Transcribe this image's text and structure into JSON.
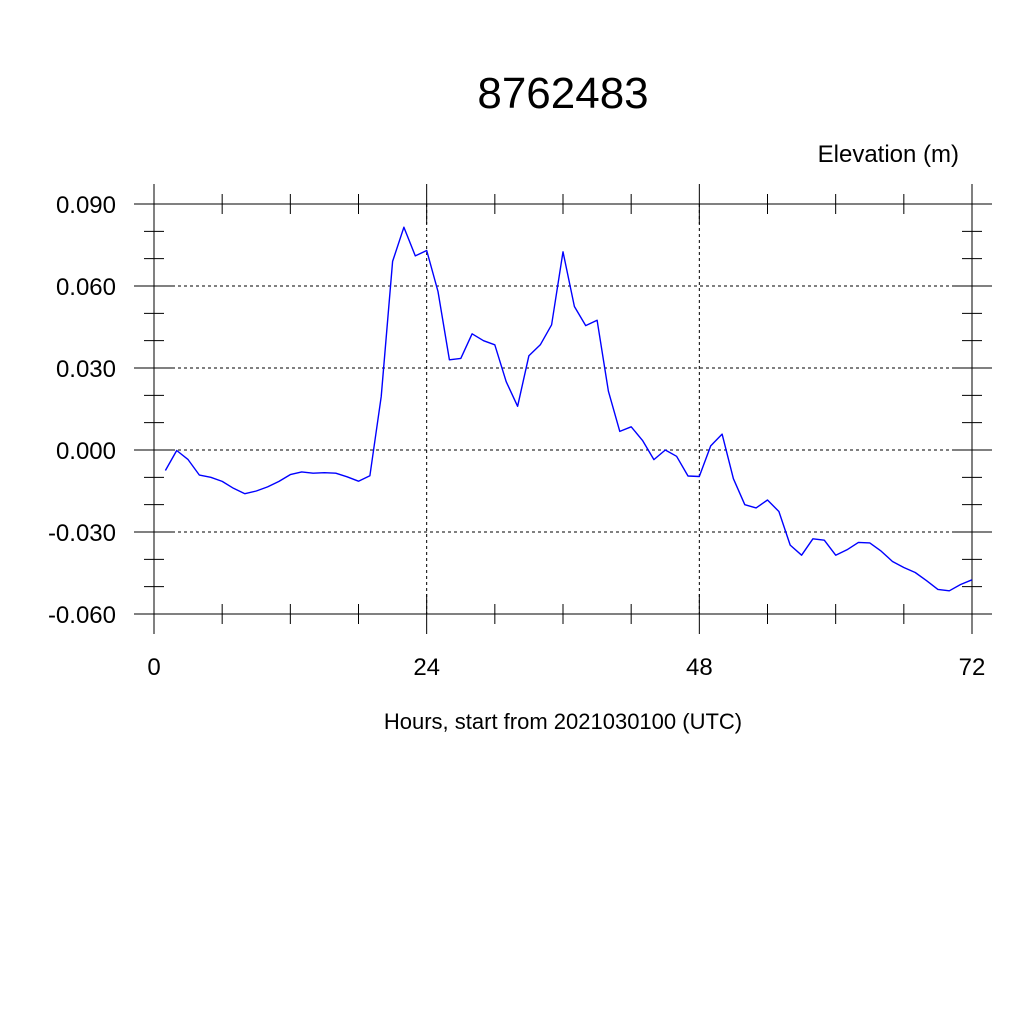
{
  "chart_data": {
    "type": "line",
    "title": "8762483",
    "unit_label": "Elevation (m)",
    "xlabel": "Hours, start from 2021030100 (UTC)",
    "ylabel": "",
    "xlim": [
      0,
      72
    ],
    "ylim": [
      -0.06,
      0.09
    ],
    "xticks": [
      0,
      24,
      48,
      72
    ],
    "xtick_labels": [
      "0",
      "24",
      "48",
      "72"
    ],
    "x_minor_step": 6,
    "yticks": [
      0.09,
      0.06,
      0.03,
      0.0,
      -0.03,
      -0.06
    ],
    "ytick_labels": [
      "0.090",
      "0.060",
      "0.030",
      "0.000",
      "-0.030",
      "-0.060"
    ],
    "y_minor_step": 0.01,
    "grid": true,
    "line_color": "#0000ff",
    "series": [
      {
        "x": [
          1,
          2,
          3,
          4,
          5,
          6,
          7,
          8,
          9,
          10,
          11,
          12,
          13,
          14,
          15,
          16,
          17,
          18,
          19,
          20,
          21,
          22,
          23,
          24,
          25,
          26,
          27,
          28,
          29,
          30,
          31,
          32,
          33,
          34,
          35,
          36,
          37,
          38,
          39,
          40,
          41,
          42,
          43,
          44,
          45,
          46,
          47,
          48,
          49,
          50,
          51,
          52,
          53,
          54,
          55,
          56,
          57,
          58,
          59,
          60,
          61,
          62,
          63,
          64,
          65,
          66,
          67,
          68,
          69,
          70,
          71,
          72
        ],
        "values": [
          -0.0075,
          -0.0002,
          -0.0035,
          -0.0092,
          -0.01,
          -0.0115,
          -0.014,
          -0.016,
          -0.015,
          -0.0135,
          -0.0115,
          -0.009,
          -0.008,
          -0.0085,
          -0.0083,
          -0.0085,
          -0.0098,
          -0.0114,
          -0.0094,
          0.0195,
          0.069,
          0.0815,
          0.071,
          0.073,
          0.058,
          0.033,
          0.0335,
          0.0425,
          0.04,
          0.0385,
          0.025,
          0.016,
          0.0345,
          0.0385,
          0.0458,
          0.0725,
          0.0525,
          0.0455,
          0.0475,
          0.0215,
          0.0068,
          0.0085,
          0.0035,
          -0.0035,
          0.0,
          -0.0023,
          -0.0095,
          -0.0097,
          0.0015,
          0.0058,
          -0.0105,
          -0.02,
          -0.0212,
          -0.0183,
          -0.0225,
          -0.0348,
          -0.0385,
          -0.0325,
          -0.033,
          -0.0385,
          -0.0365,
          -0.0338,
          -0.034,
          -0.037,
          -0.0408,
          -0.043,
          -0.0448,
          -0.0478,
          -0.051,
          -0.0515,
          -0.0492,
          -0.0475
        ]
      }
    ]
  }
}
